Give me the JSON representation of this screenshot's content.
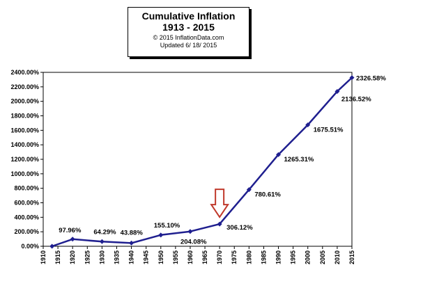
{
  "chart_data": {
    "type": "line",
    "title": "Cumulative Inflation",
    "subtitle": "1913 - 2015",
    "copyright": "© 2015 InflationData.com",
    "updated": "Updated  6/ 18/ 2015",
    "xlabel": "",
    "ylabel": "",
    "xlim": [
      1910,
      2015
    ],
    "ylim": [
      0,
      2400
    ],
    "x_ticks": [
      1910,
      1915,
      1920,
      1925,
      1930,
      1935,
      1940,
      1945,
      1950,
      1955,
      1960,
      1965,
      1970,
      1975,
      1980,
      1985,
      1990,
      1995,
      2000,
      2005,
      2010,
      2015
    ],
    "y_ticks": [
      0,
      200,
      400,
      600,
      800,
      1000,
      1200,
      1400,
      1600,
      1800,
      2000,
      2200,
      2400
    ],
    "y_tick_labels": [
      "0.00%",
      "200.00%",
      "400.00%",
      "600.00%",
      "800.00%",
      "1000.00%",
      "1200.00%",
      "1400.00%",
      "1600.00%",
      "1800.00%",
      "2000.00%",
      "2200.00%",
      "2400.00%"
    ],
    "series": [
      {
        "color": "#1f1f8f",
        "points": [
          {
            "x": 1913,
            "y": 0
          },
          {
            "x": 1920,
            "y": 97.96,
            "label": "97.96%"
          },
          {
            "x": 1930,
            "y": 64.29,
            "label": "64.29%"
          },
          {
            "x": 1940,
            "y": 43.88,
            "label": "43.88%"
          },
          {
            "x": 1950,
            "y": 155.1,
            "label": "155.10%"
          },
          {
            "x": 1960,
            "y": 204.08,
            "label": "204.08%"
          },
          {
            "x": 1970,
            "y": 306.12,
            "label": "306.12%"
          },
          {
            "x": 1980,
            "y": 780.61,
            "label": "780.61%"
          },
          {
            "x": 1990,
            "y": 1265.31,
            "label": "1265.31%"
          },
          {
            "x": 2000,
            "y": 1675.51,
            "label": "1675.51%"
          },
          {
            "x": 2010,
            "y": 2136.52,
            "label": "2136.52%"
          },
          {
            "x": 2015,
            "y": 2326.58,
            "label": "2326.58%"
          }
        ]
      }
    ],
    "annotations": [
      {
        "type": "arrow",
        "direction": "down",
        "x": 1970,
        "color": "#c0392b"
      }
    ],
    "grid": false,
    "legend": "none"
  }
}
